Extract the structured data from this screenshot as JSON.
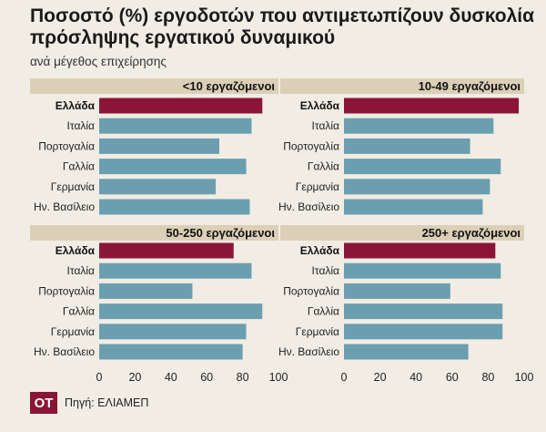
{
  "header": {
    "title": "Ποσοστό (%) εργοδοτών που αντιμετωπίζουν δυσκολία πρόσληψης εργατικού δυναμικού",
    "subtitle": "ανά μέγεθος επιχείρησης"
  },
  "footer": {
    "logo": "ΟΤ",
    "source": "Πηγή: ΕΛΙΑΜΕΠ"
  },
  "colors": {
    "highlight": "#8b1538",
    "bar": "#6b9fb0",
    "panel_header": "#dccfb8",
    "background": "#f1ede4"
  },
  "chart_data": [
    {
      "type": "bar",
      "orientation": "horizontal",
      "title": "<10 εργαζόμενοι",
      "categories": [
        "Ελλάδα",
        "Ιταλία",
        "Πορτογαλία",
        "Γαλλία",
        "Γερμανία",
        "Ην. Βασίλειο"
      ],
      "values": [
        91,
        85,
        67,
        82,
        65,
        84
      ],
      "highlight": "Ελλάδα",
      "xlim": [
        0,
        100
      ],
      "xticks": [
        0,
        20,
        40,
        60,
        80,
        100
      ],
      "grid": false
    },
    {
      "type": "bar",
      "orientation": "horizontal",
      "title": "10-49 εργαζόμενοι",
      "categories": [
        "Ελλάδα",
        "Ιταλία",
        "Πορτογαλία",
        "Γαλλία",
        "Γερμανία",
        "Ην. Βασίλειο"
      ],
      "values": [
        97,
        83,
        70,
        87,
        81,
        77
      ],
      "highlight": "Ελλάδα",
      "xlim": [
        0,
        100
      ],
      "xticks": [
        0,
        20,
        40,
        60,
        80,
        100
      ],
      "grid": false
    },
    {
      "type": "bar",
      "orientation": "horizontal",
      "title": "50-250 εργαζόμενοι",
      "categories": [
        "Ελλάδα",
        "Ιταλία",
        "Πορτογαλία",
        "Γαλλία",
        "Γερμανία",
        "Ην. Βασίλειο"
      ],
      "values": [
        75,
        85,
        52,
        91,
        82,
        80
      ],
      "highlight": "Ελλάδα",
      "xlim": [
        0,
        100
      ],
      "xticks": [
        0,
        20,
        40,
        60,
        80,
        100
      ],
      "grid": false
    },
    {
      "type": "bar",
      "orientation": "horizontal",
      "title": "250+ εργαζόμενοι",
      "categories": [
        "Ελλάδα",
        "Ιταλία",
        "Πορτογαλία",
        "Γαλλία",
        "Γερμανία",
        "Ην. Βασίλειο"
      ],
      "values": [
        84,
        87,
        59,
        88,
        88,
        69
      ],
      "highlight": "Ελλάδα",
      "xlim": [
        0,
        100
      ],
      "xticks": [
        0,
        20,
        40,
        60,
        80,
        100
      ],
      "grid": false
    }
  ]
}
